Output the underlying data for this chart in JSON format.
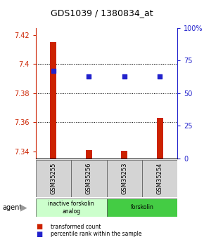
{
  "title": "GDS1039 / 1380834_at",
  "samples": [
    "GSM35255",
    "GSM35256",
    "GSM35253",
    "GSM35254"
  ],
  "red_values": [
    7.415,
    7.341,
    7.3405,
    7.363
  ],
  "blue_values": [
    67,
    63,
    63,
    63
  ],
  "ylim_left": [
    7.335,
    7.425
  ],
  "ylim_right": [
    0,
    100
  ],
  "left_ticks": [
    7.34,
    7.36,
    7.38,
    7.4,
    7.42
  ],
  "right_ticks": [
    0,
    25,
    50,
    75,
    100
  ],
  "grid_lines": [
    7.36,
    7.38,
    7.4
  ],
  "bar_color": "#cc2200",
  "dot_color": "#2222cc",
  "agent_groups": [
    {
      "label": "inactive forskolin\nanalog",
      "samples": [
        0,
        1
      ],
      "color": "#ccffcc"
    },
    {
      "label": "forskolin",
      "samples": [
        2,
        3
      ],
      "color": "#44cc44"
    }
  ],
  "legend_items": [
    {
      "color": "#cc2200",
      "label": "transformed count"
    },
    {
      "color": "#2222cc",
      "label": "percentile rank within the sample"
    }
  ],
  "background_color": "#ffffff",
  "title_color": "#000000",
  "left_axis_color": "#cc2200",
  "right_axis_color": "#2222cc",
  "bar_width": 0.18,
  "baseline": 7.335
}
